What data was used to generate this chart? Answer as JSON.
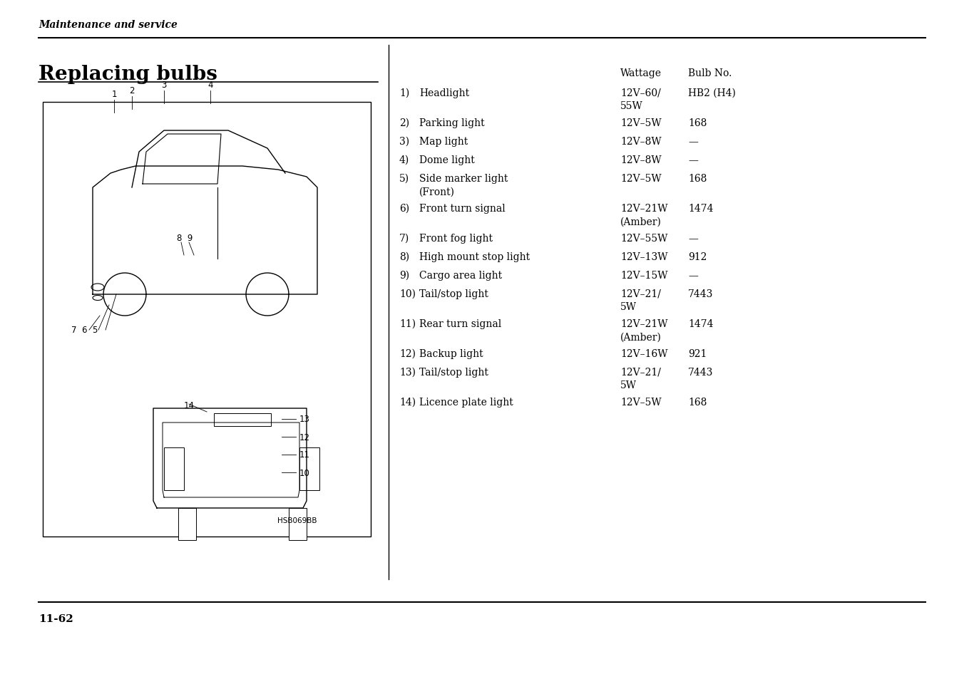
{
  "background_color": "#ffffff",
  "page_header": "Maintenance and service",
  "section_title": "Replacing bulbs",
  "page_number": "11-62",
  "image_label": "HSB069BB",
  "col_header_wattage": "Wattage",
  "col_header_bulb": "Bulb No.",
  "bulbs": [
    {
      "num": "1)",
      "name": "Headlight",
      "wattage": "12V–60/\n55W",
      "bulb": "HB2 (H4)"
    },
    {
      "num": "2)",
      "name": "Parking light",
      "wattage": "12V–5W",
      "bulb": "168"
    },
    {
      "num": "3)",
      "name": "Map light",
      "wattage": "12V–8W",
      "bulb": "—"
    },
    {
      "num": "4)",
      "name": "Dome light",
      "wattage": "12V–8W",
      "bulb": "—"
    },
    {
      "num": "5)",
      "name": "Side marker light\n(Front)",
      "wattage": "12V–5W",
      "bulb": "168"
    },
    {
      "num": "6)",
      "name": "Front turn signal",
      "wattage": "12V–21W\n(Amber)",
      "bulb": "1474"
    },
    {
      "num": "7)",
      "name": "Front fog light",
      "wattage": "12V–55W",
      "bulb": "—"
    },
    {
      "num": "8)",
      "name": "High mount stop light",
      "wattage": "12V–13W",
      "bulb": "912"
    },
    {
      "num": "9)",
      "name": "Cargo area light",
      "wattage": "12V–15W",
      "bulb": "—"
    },
    {
      "num": "10)",
      "name": "Tail/stop light",
      "wattage": "12V–21/\n5W",
      "bulb": "7443"
    },
    {
      "num": "11)",
      "name": "Rear turn signal",
      "wattage": "12V–21W\n(Amber)",
      "bulb": "1474"
    },
    {
      "num": "12)",
      "name": "Backup light",
      "wattage": "12V–16W",
      "bulb": "921"
    },
    {
      "num": "13)",
      "name": "Tail/stop light",
      "wattage": "12V–21/\n5W",
      "bulb": "7443"
    },
    {
      "num": "14)",
      "name": "Licence plate light",
      "wattage": "12V–5W",
      "bulb": "168"
    }
  ]
}
